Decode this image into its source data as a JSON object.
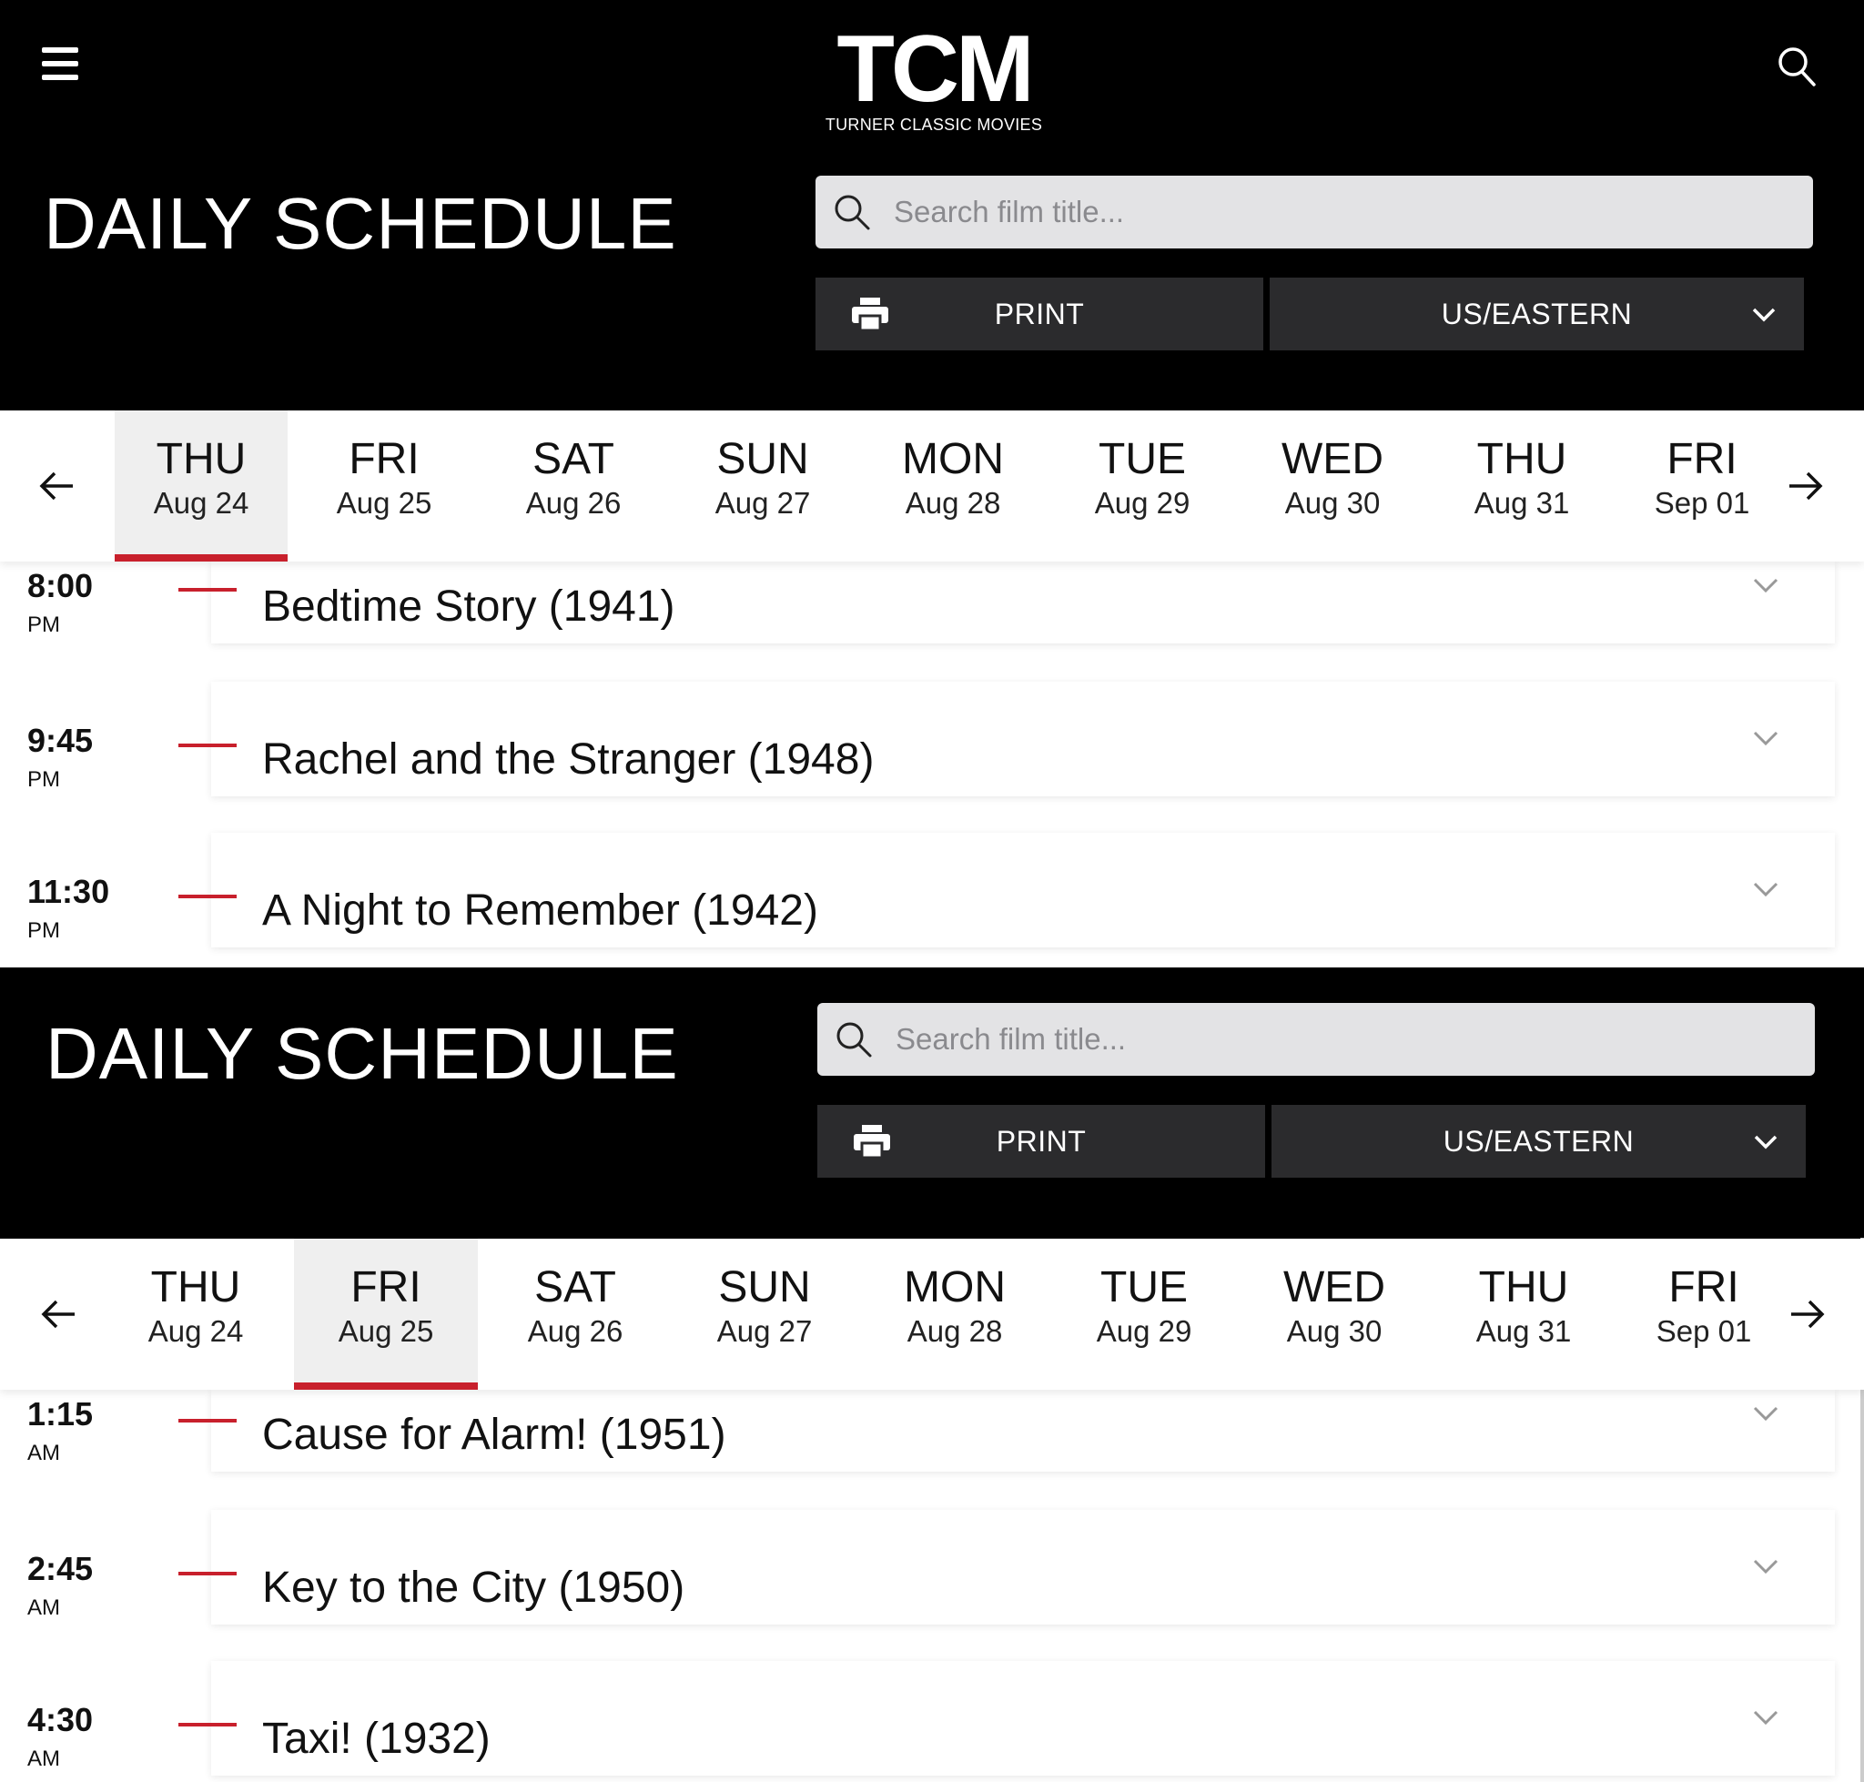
{
  "brand": {
    "logo": "TCM",
    "tagline": "TURNER CLASSIC MOVIES"
  },
  "header": {
    "menu_icon": "hamburger-menu-icon",
    "search_icon": "search-icon",
    "title": "DAILY SCHEDULE",
    "search_placeholder": "Search film title...",
    "print_label": "PRINT",
    "timezone": "US/EASTERN"
  },
  "days": [
    {
      "name": "THU",
      "date": "Aug 24"
    },
    {
      "name": "FRI",
      "date": "Aug 25"
    },
    {
      "name": "SAT",
      "date": "Aug 26"
    },
    {
      "name": "SUN",
      "date": "Aug 27"
    },
    {
      "name": "MON",
      "date": "Aug 28"
    },
    {
      "name": "TUE",
      "date": "Aug 29"
    },
    {
      "name": "WED",
      "date": "Aug 30"
    },
    {
      "name": "THU",
      "date": "Aug 31"
    },
    {
      "name": "FRI",
      "date": "Sep 01"
    }
  ],
  "panels": [
    {
      "active_day": 0,
      "schedule": [
        {
          "time": "8:00",
          "ampm": "PM",
          "title": "Bedtime Story (1941)"
        },
        {
          "time": "9:45",
          "ampm": "PM",
          "title": "Rachel and the Stranger (1948)"
        },
        {
          "time": "11:30",
          "ampm": "PM",
          "title": "A Night to Remember (1942)"
        }
      ]
    },
    {
      "active_day": 1,
      "schedule": [
        {
          "time": "1:15",
          "ampm": "AM",
          "title": "Cause for Alarm! (1951)"
        },
        {
          "time": "2:45",
          "ampm": "AM",
          "title": "Key to the City (1950)"
        },
        {
          "time": "4:30",
          "ampm": "AM",
          "title": "Taxi! (1932)"
        }
      ]
    }
  ],
  "colors": {
    "accent": "#c8202c",
    "header_bg": "#000000",
    "button_bg": "#2b2b2d",
    "search_bg": "#e3e3e5"
  }
}
